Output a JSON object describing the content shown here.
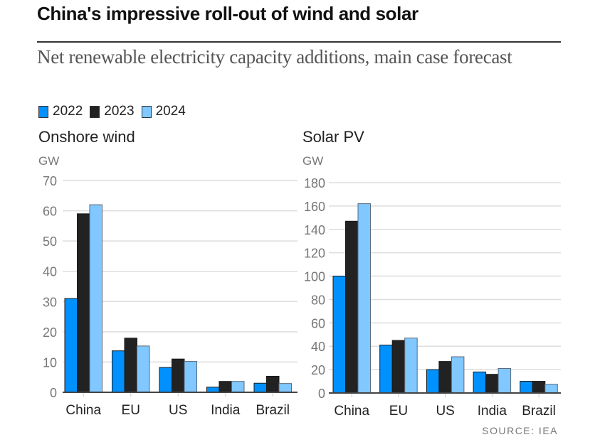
{
  "header": {
    "title": "China's impressive roll-out of wind and solar",
    "subtitle": "Net renewable electricity capacity additions, main case forecast"
  },
  "legend": [
    {
      "label": "2022",
      "color": "#0091ff"
    },
    {
      "label": "2023",
      "color": "#222222"
    },
    {
      "label": "2024",
      "color": "#80c8ff"
    }
  ],
  "source": "SOURCE: IEA",
  "chart_data": [
    {
      "type": "bar",
      "title": "Onshore wind",
      "ylabel": "GW",
      "xlabel": "",
      "categories": [
        "China",
        "EU",
        "US",
        "India",
        "Brazil"
      ],
      "ylim": [
        0,
        70
      ],
      "yticks": [
        0,
        10,
        20,
        30,
        40,
        50,
        60,
        70
      ],
      "grid": true,
      "legend": "top-left",
      "series": [
        {
          "name": "2022",
          "color": "#0091ff",
          "values": [
            31,
            13.7,
            8.2,
            1.7,
            3
          ]
        },
        {
          "name": "2023",
          "color": "#222222",
          "values": [
            59,
            17.9,
            11,
            3.6,
            5.3
          ]
        },
        {
          "name": "2024",
          "color": "#80c8ff",
          "values": [
            62,
            15.3,
            10.2,
            3.6,
            2.9
          ]
        }
      ]
    },
    {
      "type": "bar",
      "title": "Solar PV",
      "ylabel": "GW",
      "xlabel": "",
      "categories": [
        "China",
        "EU",
        "US",
        "India",
        "Brazil"
      ],
      "ylim": [
        0,
        180
      ],
      "yticks": [
        0,
        20,
        40,
        60,
        80,
        100,
        120,
        140,
        160,
        180
      ],
      "grid": true,
      "legend": "top-left",
      "series": [
        {
          "name": "2022",
          "color": "#0091ff",
          "values": [
            100,
            41,
            20,
            18,
            10
          ]
        },
        {
          "name": "2023",
          "color": "#222222",
          "values": [
            147,
            45,
            27,
            16,
            10
          ]
        },
        {
          "name": "2024",
          "color": "#80c8ff",
          "values": [
            162,
            47,
            31,
            21,
            7.5
          ]
        }
      ]
    }
  ]
}
